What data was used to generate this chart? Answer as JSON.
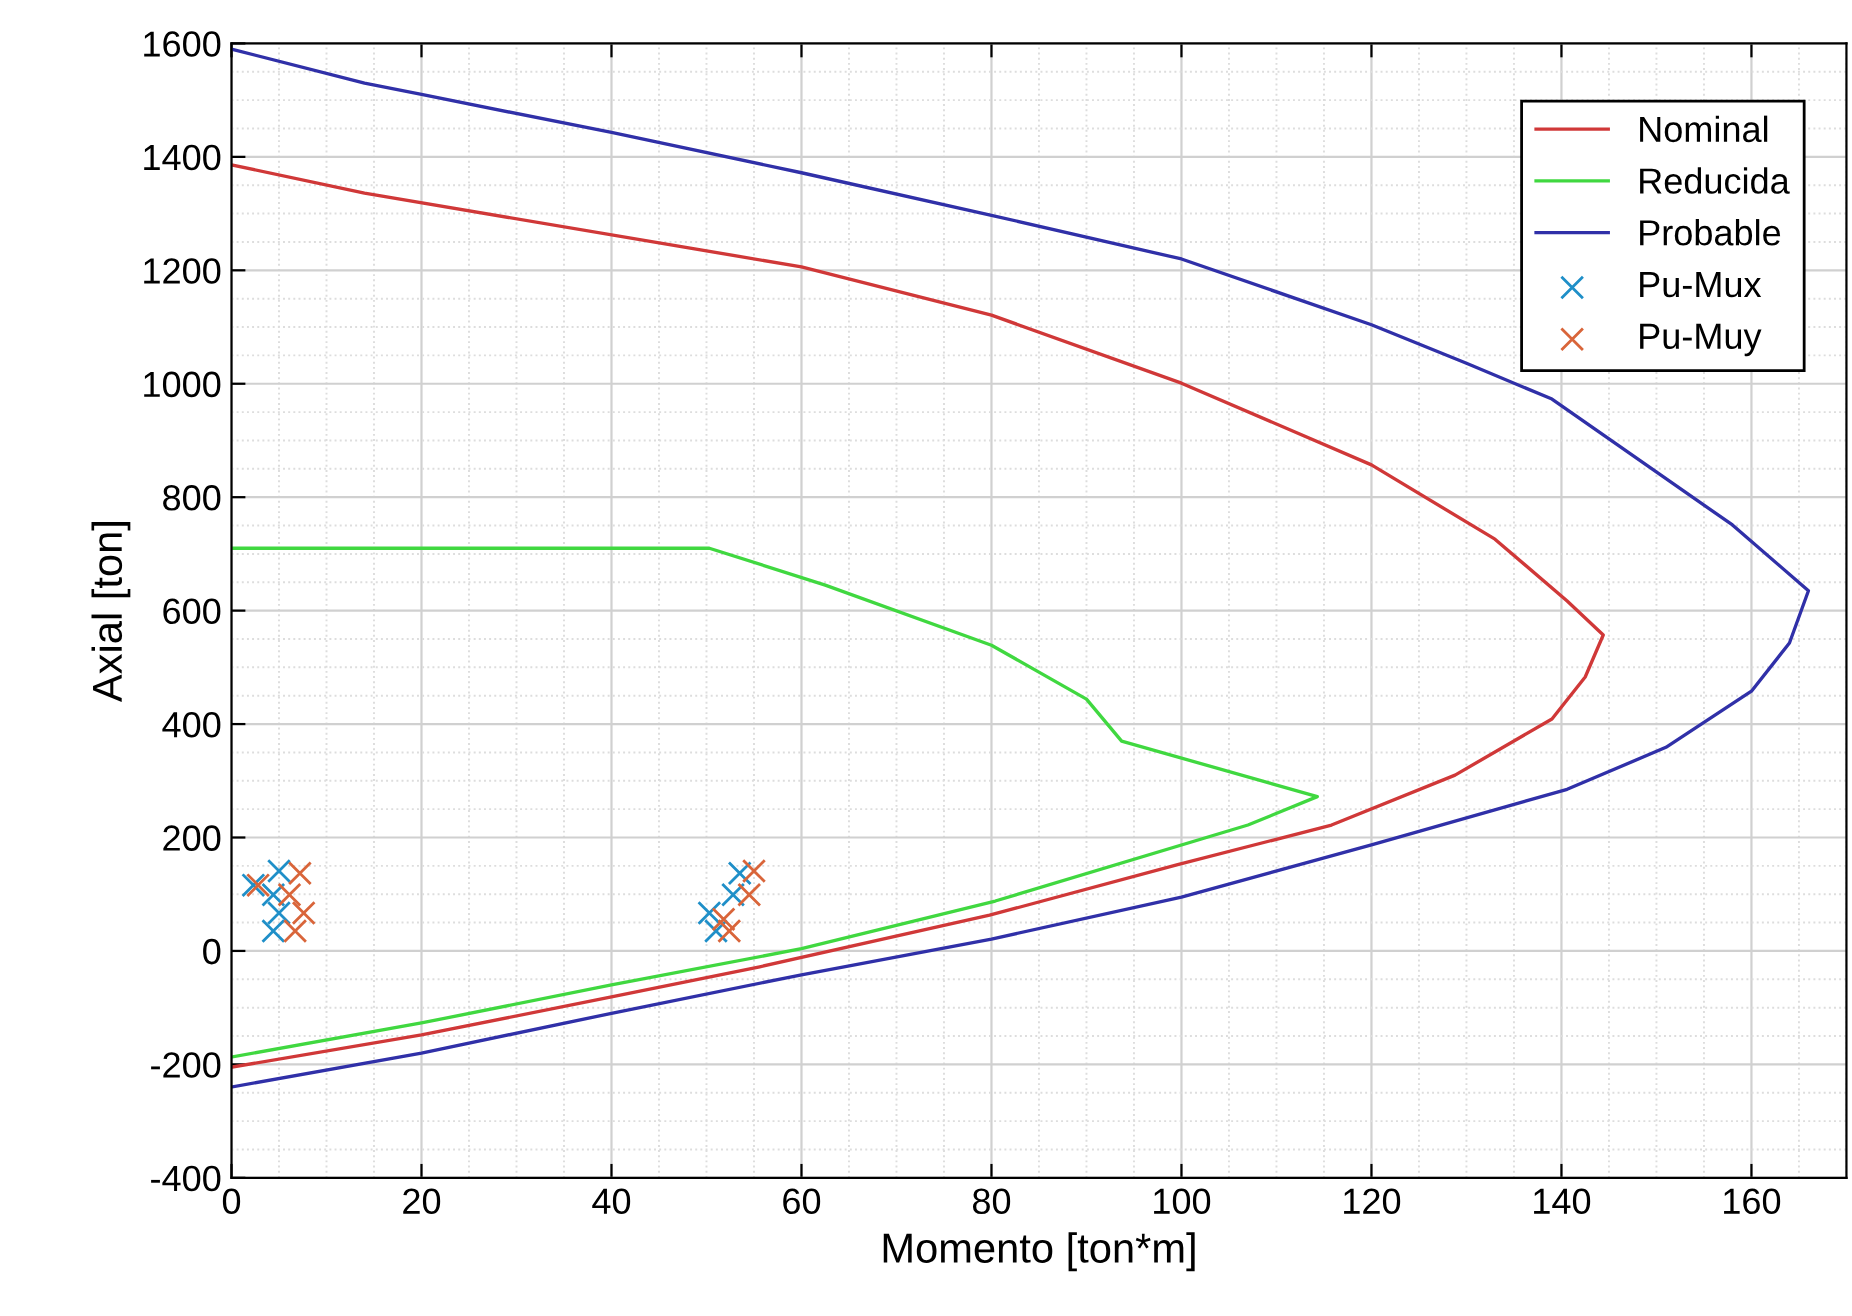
{
  "chart_data": {
    "type": "line",
    "xlabel": "Momento [ton*m]",
    "ylabel": "Axial [ton]",
    "xlim": [
      0,
      170
    ],
    "ylim": [
      -400,
      1600
    ],
    "xticks": [
      0,
      20,
      40,
      60,
      80,
      100,
      120,
      140,
      160
    ],
    "yticks": [
      -400,
      -200,
      0,
      200,
      400,
      600,
      800,
      1000,
      1200,
      1400,
      1600
    ],
    "grid": true,
    "legend": "top right",
    "series": [
      {
        "name": "Nominal",
        "color": "#d03838",
        "x": [
          0,
          14,
          60,
          80,
          100,
          120,
          133,
          140.6,
          144.4,
          142.5,
          139,
          128.8,
          115.8,
          99.6,
          79.8,
          55.6,
          40,
          20,
          0
        ],
        "values": [
          1386,
          1336,
          1206,
          1121,
          1001,
          857,
          726,
          617,
          557,
          483,
          409,
          310,
          222,
          152,
          63,
          -28,
          -81,
          -148,
          -205
        ]
      },
      {
        "name": "Reducida",
        "color": "#40d840",
        "x": [
          0,
          50.3,
          62.5,
          80,
          90,
          93.7,
          114.3,
          107,
          80.4,
          60,
          40,
          20,
          0
        ],
        "values": [
          710,
          710,
          645,
          539,
          444,
          370,
          272,
          222,
          88,
          4,
          -60,
          -127,
          -187
        ]
      },
      {
        "name": "Probable",
        "color": "#3030a8",
        "x": [
          0,
          14,
          20,
          40,
          60,
          80,
          100,
          120,
          130,
          139,
          158,
          166,
          164,
          160,
          151,
          140.6,
          120,
          100,
          80,
          60,
          40,
          20,
          0
        ],
        "values": [
          1590,
          1530,
          1510,
          1443,
          1372,
          1297,
          1220,
          1104,
          1036,
          973,
          751,
          635,
          543,
          458,
          359,
          285,
          187,
          95,
          21,
          -42,
          -110,
          -180,
          -240
        ]
      },
      {
        "name": "Pu-Mux",
        "type": "scatter",
        "marker": "cross",
        "color": "#1f8fc8",
        "x": [
          2.3,
          5,
          4.4,
          5,
          4.4,
          53.5,
          52.8,
          50.3,
          51
        ],
        "values": [
          116,
          141,
          99,
          67,
          35,
          137,
          99,
          67,
          35
        ]
      },
      {
        "name": "Pu-Muy",
        "type": "scatter",
        "marker": "cross",
        "color": "#d9653a",
        "x": [
          2.8,
          7.2,
          6.1,
          7.6,
          6.7,
          55,
          54.5,
          51.8,
          52.4
        ],
        "values": [
          116,
          137,
          99,
          67,
          35,
          141,
          99,
          56,
          35
        ]
      }
    ]
  }
}
